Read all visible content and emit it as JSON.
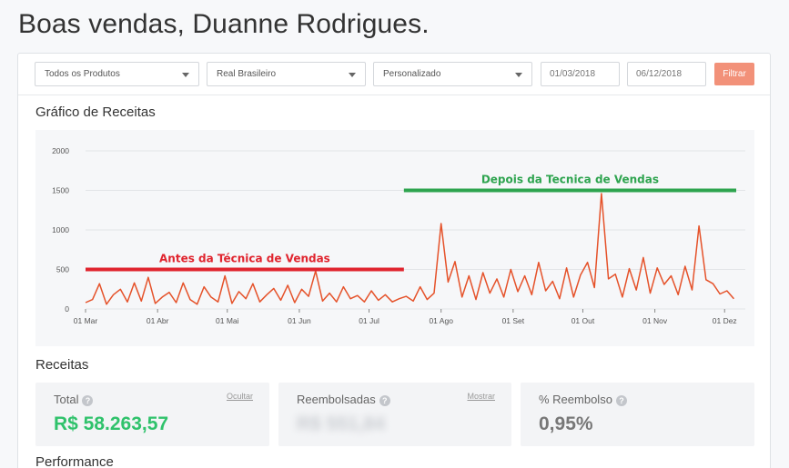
{
  "greeting": "Boas vendas, Duanne Rodrigues.",
  "filters": {
    "product": "Todos os Produtos",
    "currency": "Real Brasileiro",
    "period": "Personalizado",
    "date_start": "01/03/2018",
    "date_end": "06/12/2018",
    "button": "Filtrar"
  },
  "revenue_chart": {
    "title": "Gráfico de Receitas"
  },
  "chart_data": {
    "type": "line",
    "xlabel": "",
    "ylabel": "",
    "x_range": [
      "2018-03-01",
      "2018-12-06"
    ],
    "ylim": [
      0,
      2000
    ],
    "yticks": [
      "0",
      "500",
      "1000",
      "1500",
      "2000"
    ],
    "xtick_labels": [
      "01 Mar",
      "01 Abr",
      "01 Mai",
      "01 Jun",
      "01 Jul",
      "01 Ago",
      "01 Set",
      "01 Out",
      "01 Nov",
      "01 Dez"
    ],
    "xtick_dates": [
      "2018-03-01",
      "2018-04-01",
      "2018-05-01",
      "2018-06-01",
      "2018-07-01",
      "2018-08-01",
      "2018-09-01",
      "2018-10-01",
      "2018-11-01",
      "2018-12-01"
    ],
    "grid": true,
    "line_color": "#e5522a",
    "series": [
      {
        "x": [
          "2018-03-01",
          "2018-03-04",
          "2018-03-07",
          "2018-03-10",
          "2018-03-13",
          "2018-03-16",
          "2018-03-19",
          "2018-03-22",
          "2018-03-25",
          "2018-03-28",
          "2018-03-31",
          "2018-04-03",
          "2018-04-06",
          "2018-04-09",
          "2018-04-12",
          "2018-04-15",
          "2018-04-18",
          "2018-04-21",
          "2018-04-24",
          "2018-04-27",
          "2018-04-30",
          "2018-05-03",
          "2018-05-06",
          "2018-05-09",
          "2018-05-12",
          "2018-05-15",
          "2018-05-18",
          "2018-05-21",
          "2018-05-24",
          "2018-05-27",
          "2018-05-30",
          "2018-06-02",
          "2018-06-05",
          "2018-06-08",
          "2018-06-11",
          "2018-06-14",
          "2018-06-17",
          "2018-06-20",
          "2018-06-23",
          "2018-06-26",
          "2018-06-29",
          "2018-07-02",
          "2018-07-05",
          "2018-07-08",
          "2018-07-11",
          "2018-07-14",
          "2018-07-17",
          "2018-07-20",
          "2018-07-23",
          "2018-07-26",
          "2018-07-29",
          "2018-08-01",
          "2018-08-04",
          "2018-08-07",
          "2018-08-10",
          "2018-08-13",
          "2018-08-16",
          "2018-08-19",
          "2018-08-22",
          "2018-08-25",
          "2018-08-28",
          "2018-08-31",
          "2018-09-03",
          "2018-09-06",
          "2018-09-09",
          "2018-09-12",
          "2018-09-15",
          "2018-09-18",
          "2018-09-21",
          "2018-09-24",
          "2018-09-27",
          "2018-09-30",
          "2018-10-03",
          "2018-10-06",
          "2018-10-09",
          "2018-10-12",
          "2018-10-15",
          "2018-10-18",
          "2018-10-21",
          "2018-10-24",
          "2018-10-27",
          "2018-10-30",
          "2018-11-02",
          "2018-11-05",
          "2018-11-08",
          "2018-11-11",
          "2018-11-14",
          "2018-11-17",
          "2018-11-20",
          "2018-11-23",
          "2018-11-26",
          "2018-11-29",
          "2018-12-02",
          "2018-12-05"
        ],
        "y": [
          80,
          120,
          320,
          60,
          180,
          250,
          90,
          330,
          100,
          400,
          70,
          150,
          210,
          80,
          330,
          120,
          60,
          280,
          150,
          90,
          420,
          70,
          220,
          130,
          320,
          90,
          180,
          260,
          110,
          300,
          80,
          250,
          160,
          480,
          100,
          200,
          90,
          280,
          130,
          170,
          90,
          230,
          110,
          180,
          90,
          130,
          160,
          100,
          280,
          120,
          200,
          1080,
          340,
          600,
          150,
          420,
          120,
          460,
          200,
          380,
          150,
          500,
          220,
          420,
          180,
          590,
          230,
          350,
          130,
          520,
          150,
          430,
          590,
          270,
          1460,
          380,
          440,
          150,
          510,
          240,
          650,
          200,
          520,
          310,
          420,
          180,
          540,
          240,
          1050,
          370,
          320,
          190,
          230,
          130
        ]
      }
    ],
    "annotations": [
      {
        "text": "Antes da Técnica de Vendas",
        "from": "2018-03-01",
        "to": "2018-07-16",
        "y": 500,
        "color": "#e0242e"
      },
      {
        "text": "Depois da Tecnica de Vendas",
        "from": "2018-07-16",
        "to": "2018-12-06",
        "y": 1500,
        "color": "#2ea44f"
      }
    ]
  },
  "revenue_section": {
    "title": "Receitas",
    "total": {
      "label": "Total",
      "link": "Ocultar",
      "value": "R$ 58.263,57"
    },
    "refunded": {
      "label": "Reembolsadas",
      "link": "Mostrar",
      "value": "R$ 551,84"
    },
    "refund_pct": {
      "label": "% Reembolso",
      "value": "0,95%"
    }
  },
  "performance_title": "Performance",
  "colors": {
    "accent": "#f29179",
    "positive": "#2fc26b"
  }
}
